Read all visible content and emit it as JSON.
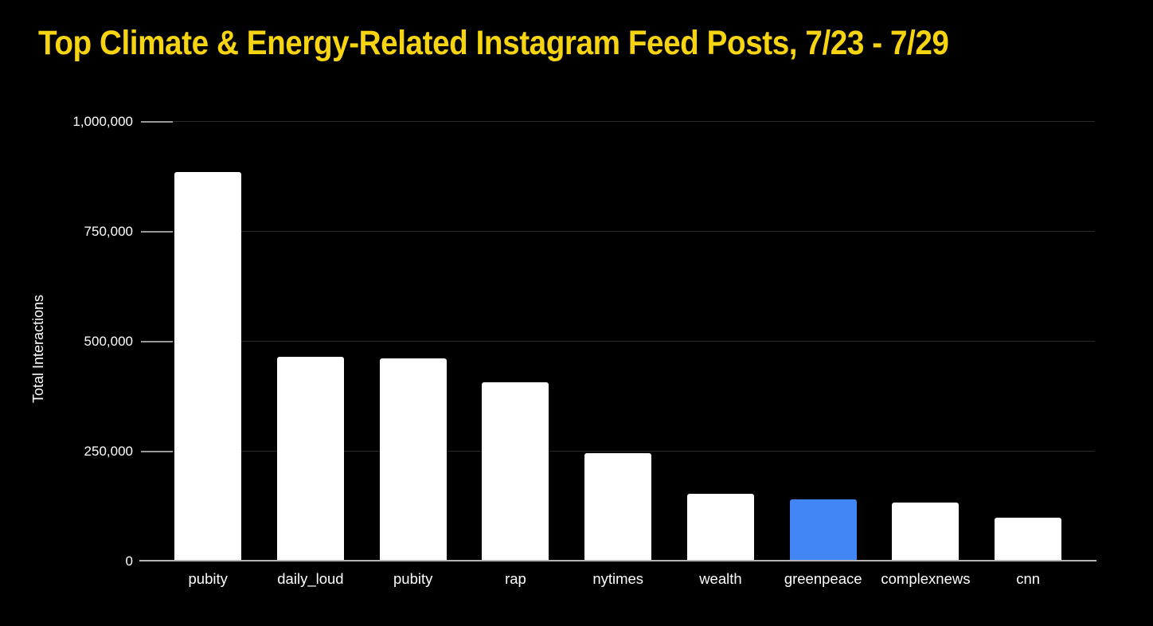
{
  "title": "Top Climate & Energy-Related Instagram Feed Posts, 7/23 - 7/29",
  "chart_data": {
    "type": "bar",
    "title": "Top Climate & Energy-Related Instagram Feed Posts, 7/23 - 7/29",
    "xlabel": "",
    "ylabel": "Total Interactions",
    "categories": [
      "pubity",
      "daily_loud",
      "pubity",
      "rap",
      "nytimes",
      "wealth",
      "greenpeace",
      "complexnews",
      "cnn"
    ],
    "values": [
      884000,
      463000,
      461000,
      405000,
      244000,
      152000,
      139000,
      133000,
      98000
    ],
    "ylim": [
      0,
      1000000
    ],
    "yticks": [
      0,
      250000,
      500000,
      750000,
      1000000
    ],
    "ytick_labels": [
      "0",
      "250,000",
      "500,000",
      "750,000",
      "1,000,000"
    ],
    "grid": true,
    "legend": "none",
    "highlight_index": 6
  },
  "colors": {
    "background": "#000000",
    "title": "#f6d412",
    "bar_default": "#ffffff",
    "bar_highlight": "#4285f4",
    "axis_text": "#ffffff",
    "gridline": "#2b2b2b",
    "axis_line": "#b5b5b5",
    "tick": "#999999"
  }
}
